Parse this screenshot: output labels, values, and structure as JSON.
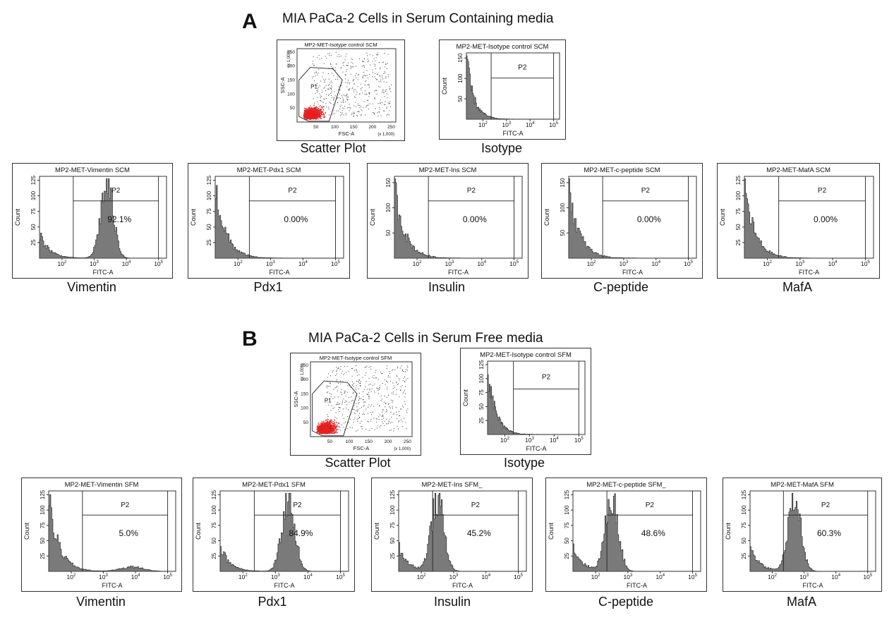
{
  "panels": [
    {
      "letter": "A",
      "title": "MIA PaCa-2 Cells in Serum Containing media",
      "scatter": {
        "title": "MP2-MET-Isotype control SCM",
        "caption": "Scatter Plot",
        "gate": "P1",
        "xlabel": "FSC-A",
        "ylabel": "SSC-A",
        "xscale": "(x 1,000)",
        "yscale": "(x 1,000)",
        "xticks": [
          "50",
          "100",
          "150",
          "200",
          "250"
        ],
        "yticks": [
          "50",
          "100",
          "150",
          "200",
          "250"
        ]
      },
      "isotype": {
        "title": "MP2-MET-Isotype control SCM",
        "caption": "Isotype",
        "gate": "P2",
        "xlabel": "FITC-A",
        "ylabel": "Count",
        "yticks": [
          "50",
          "100",
          "150"
        ]
      },
      "histograms": [
        {
          "title": "MP2-MET-Vimentin SCM",
          "caption": "Vimentin",
          "gate": "P2",
          "percent": "92.1%",
          "peak_log": 3.4,
          "yticks": [
            "25",
            "50",
            "75",
            "100",
            "125"
          ]
        },
        {
          "title": "MP2-MET-Pdx1 SCM",
          "caption": "Pdx1",
          "gate": "P2",
          "percent": "0.00%",
          "peak_log": null,
          "yticks": [
            "25",
            "50",
            "75",
            "100",
            "125"
          ]
        },
        {
          "title": "MP2-MET-Ins SCM",
          "caption": "Insulin",
          "gate": "P2",
          "percent": "0.00%",
          "peak_log": null,
          "yticks": [
            "50",
            "100",
            "150"
          ]
        },
        {
          "title": "MP2-MET-c-peptide SCM",
          "caption": "C-peptide",
          "gate": "P2",
          "percent": "0.00%",
          "peak_log": null,
          "yticks": [
            "50",
            "100",
            "150"
          ]
        },
        {
          "title": "MP2-MET-MafA SCM",
          "caption": "MafA",
          "gate": "P2",
          "percent": "0.00%",
          "peak_log": null,
          "yticks": [
            "25",
            "50",
            "75",
            "100",
            "125"
          ]
        }
      ]
    },
    {
      "letter": "B",
      "title": "MIA PaCa-2 Cells in Serum Free media",
      "scatter": {
        "title": "MP2-MET-Isotype control SFM",
        "caption": "Scatter Plot",
        "gate": "P1",
        "xlabel": "FSC-A",
        "ylabel": "SSC-A",
        "xscale": "(x 1,000)",
        "yscale": "(x 1,000)",
        "xticks": [
          "50",
          "100",
          "150",
          "200",
          "250"
        ],
        "yticks": [
          "50",
          "100",
          "150",
          "200",
          "250"
        ]
      },
      "isotype": {
        "title": "MP2-MET-Isotype control SFM",
        "caption": "Isotype",
        "gate": "P2",
        "xlabel": "FITC-A",
        "ylabel": "Count",
        "yticks": [
          "25",
          "50",
          "75",
          "100",
          "125"
        ]
      },
      "histograms": [
        {
          "title": "MP2-MET-Vimentin SFM",
          "caption": "Vimentin",
          "gate": "P2",
          "percent": "5.0%",
          "peak_log": null,
          "yticks": [
            "25",
            "50",
            "75",
            "100",
            "125"
          ]
        },
        {
          "title": "MP2-MET-Pdx1 SFM",
          "caption": "Pdx1",
          "gate": "P2",
          "percent": "84.9%",
          "peak_log": 3.4,
          "yticks": [
            "25",
            "50",
            "75",
            "100",
            "125"
          ]
        },
        {
          "title": "MP2-MET-Ins SFM_",
          "caption": "Insulin",
          "gate": "P2",
          "percent": "45.2%",
          "peak_log": 2.5,
          "yticks": [
            "25",
            "50",
            "75",
            "100",
            "125"
          ]
        },
        {
          "title": "MP2-MET-c-peptide SFM_",
          "caption": "C-peptide",
          "gate": "P2",
          "percent": "48.6%",
          "peak_log": 2.5,
          "yticks": [
            "25",
            "50",
            "75",
            "100",
            "125"
          ]
        },
        {
          "title": "MP2-MET-MafA SFM",
          "caption": "MafA",
          "gate": "P2",
          "percent": "60.3%",
          "peak_log": 2.7,
          "yticks": [
            "25",
            "50",
            "75",
            "100",
            "125"
          ]
        }
      ]
    }
  ],
  "chart_data": {
    "type": "histogram",
    "xaxis": {
      "label": "FITC-A",
      "scale": "log",
      "ticks": [
        "10^2",
        "10^3",
        "10^4",
        "10^5"
      ]
    },
    "yaxis": {
      "label": "Count"
    },
    "series": [
      {
        "name": "Vimentin SCM",
        "P2_percent": 92.1
      },
      {
        "name": "Pdx1 SCM",
        "P2_percent": 0.0
      },
      {
        "name": "Ins SCM",
        "P2_percent": 0.0
      },
      {
        "name": "c-peptide SCM",
        "P2_percent": 0.0
      },
      {
        "name": "MafA SCM",
        "P2_percent": 0.0
      },
      {
        "name": "Vimentin SFM",
        "P2_percent": 5.0
      },
      {
        "name": "Pdx1 SFM",
        "P2_percent": 84.9
      },
      {
        "name": "Ins SFM",
        "P2_percent": 45.2
      },
      {
        "name": "c-peptide SFM",
        "P2_percent": 48.6
      },
      {
        "name": "MafA SFM",
        "P2_percent": 60.3
      }
    ]
  }
}
